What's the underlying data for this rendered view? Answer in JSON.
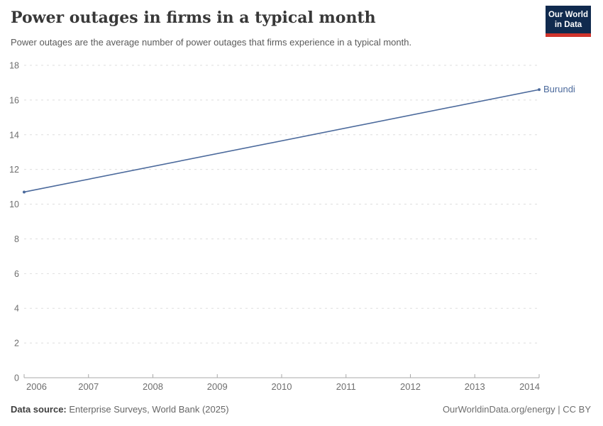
{
  "header": {
    "title": "Power outages in firms in a typical month",
    "subtitle": "Power outages are the average number of power outages that firms experience in a typical month.",
    "logo": {
      "line1": "Our World",
      "line2": "in Data",
      "bg_color": "#102a4e",
      "accent_color": "#d0342c"
    }
  },
  "chart_data": {
    "type": "line",
    "title": "Power outages in firms in a typical month",
    "xlabel": "",
    "ylabel": "",
    "xlim": [
      2006,
      2014
    ],
    "ylim": [
      0,
      18
    ],
    "x_ticks": [
      2006,
      2007,
      2008,
      2009,
      2010,
      2011,
      2012,
      2013,
      2014
    ],
    "y_ticks": [
      0,
      2,
      4,
      6,
      8,
      10,
      12,
      14,
      16,
      18
    ],
    "grid": "horizontal-dashed",
    "legend_position": "end-of-line-label",
    "series": [
      {
        "name": "Burundi",
        "color": "#4c6a9c",
        "points": [
          {
            "x": 2006,
            "y": 10.7
          },
          {
            "x": 2014,
            "y": 16.6
          }
        ]
      }
    ]
  },
  "footer": {
    "source_label": "Data source:",
    "source_text": " Enterprise Surveys, World Bank (2025)",
    "credit": "OurWorldinData.org/energy | CC BY"
  }
}
